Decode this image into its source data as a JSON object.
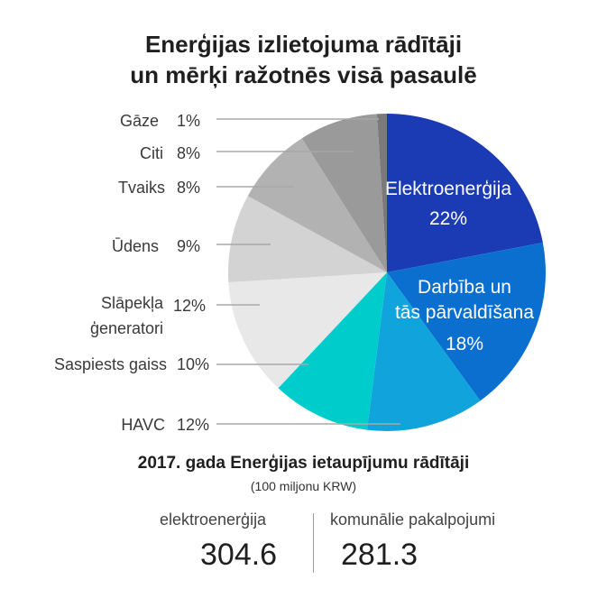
{
  "title_line1": "Enerģijas izlietojuma rādītāji",
  "title_line2": "un mērķi ražotnēs visā pasaulē",
  "chart_data": {
    "type": "pie",
    "title": "Enerģijas izlietojuma rādītāji un mērķi ražotnēs visā pasaulē",
    "slices": [
      {
        "label": "Elektroenerģija",
        "value": 22,
        "display": "22%",
        "color": "#1a3bb3"
      },
      {
        "label": "Darbība un tās pārvaldīšana",
        "value": 18,
        "display": "18%",
        "color": "#0b6fcf"
      },
      {
        "label": "HAVC",
        "value": 12,
        "display": "12%",
        "color": "#11a3dc"
      },
      {
        "label": "Saspiests gaiss",
        "value": 10,
        "display": "10%",
        "color": "#00cccc"
      },
      {
        "label": "Slāpekļa ģeneratori",
        "value": 12,
        "display": "12%",
        "color": "#e8e8e8"
      },
      {
        "label": "Ūdens",
        "value": 9,
        "display": "9%",
        "color": "#d3d3d3"
      },
      {
        "label": "Tvaiks",
        "value": 8,
        "display": "8%",
        "color": "#b2b2b2"
      },
      {
        "label": "Citi",
        "value": 8,
        "display": "8%",
        "color": "#9a9a9a"
      },
      {
        "label": "Gāze",
        "value": 1,
        "display": "1%",
        "color": "#7a7a7a"
      }
    ],
    "inside_labels": [
      {
        "lines": [
          "Elektroenerģija",
          "22%"
        ]
      },
      {
        "lines": [
          "Darbība un",
          "tās pārvaldīšana",
          "18%"
        ]
      }
    ],
    "outside_labels": [
      {
        "lines": [
          "Gāze"
        ],
        "pct": "1%"
      },
      {
        "lines": [
          "Citi"
        ],
        "pct": "8%"
      },
      {
        "lines": [
          "Tvaiks"
        ],
        "pct": "8%"
      },
      {
        "lines": [
          "Ūdens"
        ],
        "pct": "9%"
      },
      {
        "lines": [
          "Slāpekļa",
          "ģeneratori"
        ],
        "pct": "12%"
      },
      {
        "lines": [
          "Saspiests gaiss"
        ],
        "pct": "10%"
      },
      {
        "lines": [
          "HAVC"
        ],
        "pct": "12%"
      }
    ]
  },
  "savings": {
    "title": "2017. gada Enerģijas ietaupījumu rādītāji",
    "unit": "(100 miljonu KRW)",
    "items": [
      {
        "label": "elektroenerģija",
        "value": "304.6"
      },
      {
        "label": "komunālie pakalpojumi",
        "value": "281.3"
      }
    ]
  }
}
